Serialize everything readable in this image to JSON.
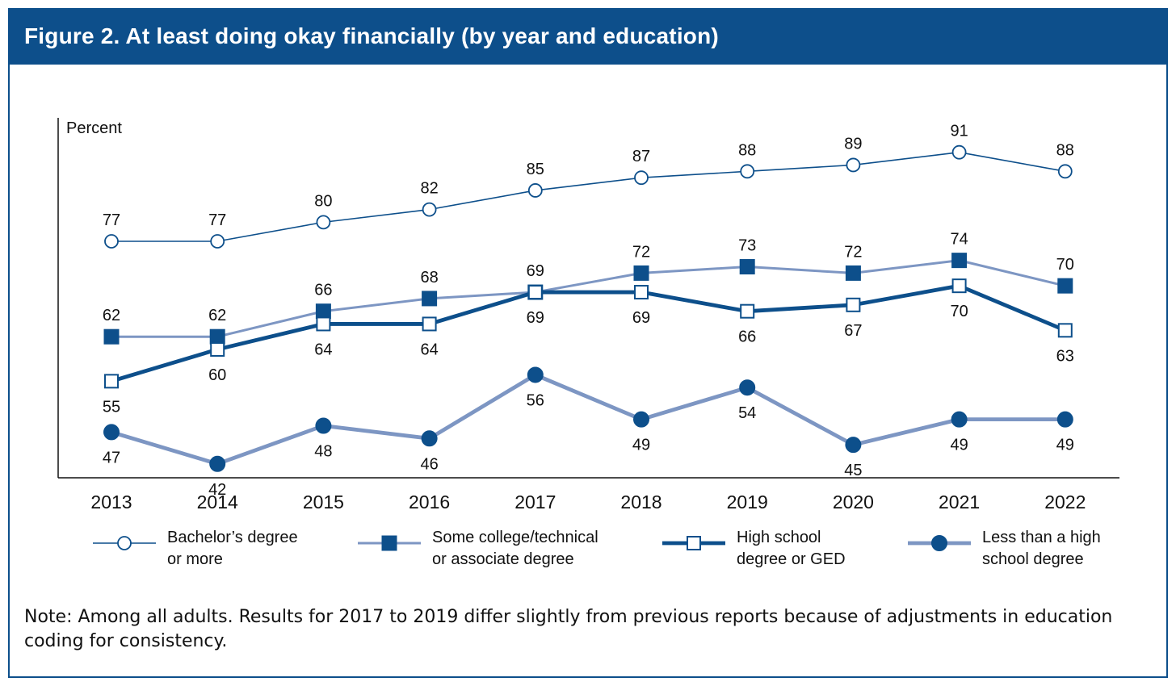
{
  "header": {
    "title": "Figure 2. At least doing okay financially (by year and education)"
  },
  "note": "Note: Among all adults. Results for 2017 to 2019 differ slightly from previous reports because of adjustments in education coding for consistency.",
  "colors": {
    "dark_blue": "#0d4f8b",
    "light_blue": "#7d96c3"
  },
  "chart_data": {
    "type": "line",
    "ylabel": "Percent",
    "xlabel": "",
    "ylim": [
      40,
      95
    ],
    "grid": false,
    "legend_position": "bottom",
    "x": [
      "2013",
      "2014",
      "2015",
      "2016",
      "2017",
      "2018",
      "2019",
      "2020",
      "2021",
      "2022"
    ],
    "series": [
      {
        "name": "Bachelor’s degree or more",
        "legend_lines": [
          "Bachelor’s degree",
          "or more"
        ],
        "marker": "open-circle",
        "line_color": "dark_blue",
        "line_weight": "thin",
        "values": [
          77,
          77,
          80,
          82,
          85,
          87,
          88,
          89,
          91,
          88
        ],
        "label_position": "above"
      },
      {
        "name": "Some college/technical or associate degree",
        "legend_lines": [
          "Some college/technical",
          "or associate degree"
        ],
        "marker": "filled-square",
        "line_color": "light_blue",
        "line_weight": "medium",
        "values": [
          62,
          62,
          66,
          68,
          69,
          72,
          73,
          72,
          74,
          70
        ],
        "label_position": "above"
      },
      {
        "name": "High school degree or GED",
        "legend_lines": [
          "High school",
          "degree or GED"
        ],
        "marker": "open-square",
        "line_color": "dark_blue",
        "line_weight": "thick",
        "values": [
          55,
          60,
          64,
          64,
          69,
          69,
          66,
          67,
          70,
          63
        ],
        "label_position": "below"
      },
      {
        "name": "Less than a high school degree",
        "legend_lines": [
          "Less than a high",
          "school degree"
        ],
        "marker": "filled-circle",
        "line_color": "light_blue",
        "line_weight": "thick",
        "values": [
          47,
          42,
          48,
          46,
          56,
          49,
          54,
          45,
          49,
          49
        ],
        "label_position": "below"
      }
    ]
  }
}
